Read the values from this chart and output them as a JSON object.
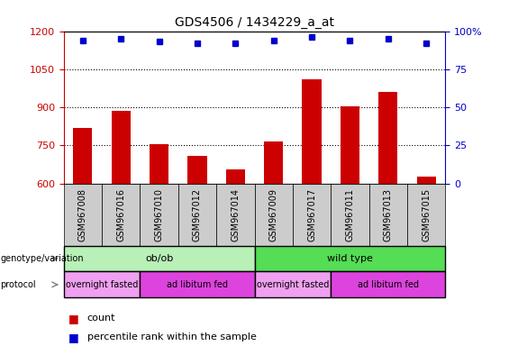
{
  "title": "GDS4506 / 1434229_a_at",
  "samples": [
    "GSM967008",
    "GSM967016",
    "GSM967010",
    "GSM967012",
    "GSM967014",
    "GSM967009",
    "GSM967017",
    "GSM967011",
    "GSM967013",
    "GSM967015"
  ],
  "counts": [
    820,
    885,
    755,
    710,
    655,
    765,
    1010,
    905,
    960,
    625
  ],
  "percentile_ranks": [
    94,
    95,
    93,
    92,
    92,
    94,
    96,
    94,
    95,
    92
  ],
  "ylim_left": [
    600,
    1200
  ],
  "ylim_right": [
    0,
    100
  ],
  "yticks_left": [
    600,
    750,
    900,
    1050,
    1200
  ],
  "yticks_right": [
    0,
    25,
    50,
    75,
    100
  ],
  "bar_color": "#cc0000",
  "dot_color": "#0000cc",
  "genotype_groups": [
    {
      "label": "ob/ob",
      "start": 0,
      "end": 5,
      "color": "#b8f0b8"
    },
    {
      "label": "wild type",
      "start": 5,
      "end": 10,
      "color": "#55dd55"
    }
  ],
  "protocol_groups": [
    {
      "label": "overnight fasted",
      "start": 0,
      "end": 2,
      "color": "#f0a0f0"
    },
    {
      "label": "ad libitum fed",
      "start": 2,
      "end": 5,
      "color": "#dd44dd"
    },
    {
      "label": "overnight fasted",
      "start": 5,
      "end": 7,
      "color": "#f0a0f0"
    },
    {
      "label": "ad libitum fed",
      "start": 7,
      "end": 10,
      "color": "#dd44dd"
    }
  ],
  "grid_ticks": [
    750,
    900,
    1050
  ],
  "xtick_bg": "#cccccc",
  "left_axis_color": "#cc0000",
  "right_axis_color": "#0000cc"
}
